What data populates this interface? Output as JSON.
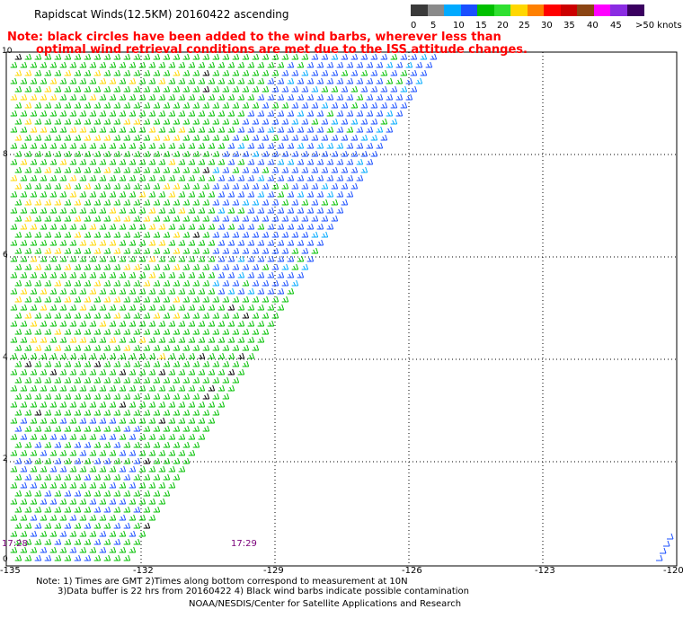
{
  "title": "Rapidscat Winds(12.5KM) 20160422 ascending",
  "note": {
    "line1": "Note: black circles have been added to the wind barbs, wherever less than",
    "line2": "optimal wind retrieval conditions are met due to the ISS attitude changes."
  },
  "color_scale": {
    "unit": "knots",
    "labels": [
      "0",
      "5",
      "10",
      "15",
      "20",
      "25",
      "30",
      "35",
      "40",
      "45",
      ">50"
    ],
    "colors": [
      "#3a3a3a",
      "#8a8a8a",
      "#00aaff",
      "#1a4fff",
      "#00c000",
      "#30e030",
      "#ffd700",
      "#ff8000",
      "#ff0000",
      "#cc0000",
      "#8b4513",
      "#ff00ff",
      "#8a2be2",
      "#3a0060"
    ]
  },
  "axes": {
    "lon_labels": [
      "-135",
      "-132",
      "-129",
      "-126",
      "-123",
      "-120"
    ],
    "lat_labels": [
      "10",
      "8",
      "6",
      "4",
      "2",
      "0"
    ]
  },
  "pass_times": [
    "17:28",
    "17:29"
  ],
  "footer": {
    "line1": "Note: 1) Times are GMT 2)Times along bottom correspond to measurement at 10N",
    "line2": "3)Data buffer is 22 hrs from 20160422 4) Black wind barbs indicate possible contamination",
    "line3": "NOAA/NESDIS/Center for Satellite Applications and Research"
  }
}
